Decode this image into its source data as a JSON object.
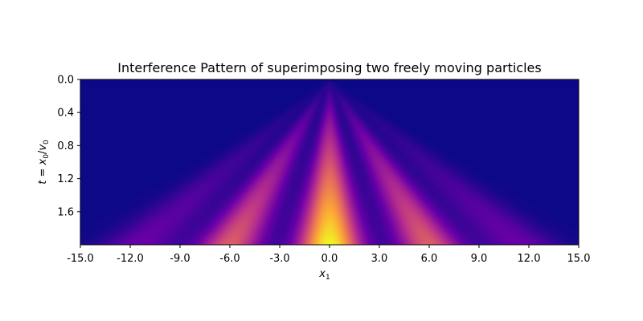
{
  "chart_data": {
    "type": "heatmap",
    "title": "Interference Pattern of superimposing two freely moving particles",
    "xlabel": "x",
    "xlabel_subscript": "1",
    "ylabel_parts": {
      "lhs": "t",
      "eq": " = ",
      "num": "x",
      "num_sub": "0",
      "slash": "/",
      "den": "v",
      "den_sub": "0"
    },
    "xlim": [
      -15.0,
      15.0
    ],
    "ylim": [
      0.0,
      2.0
    ],
    "y_inverted": true,
    "x_ticks": [
      -15.0,
      -12.0,
      -9.0,
      -6.0,
      -3.0,
      0.0,
      3.0,
      6.0,
      9.0,
      12.0,
      15.0
    ],
    "x_tick_labels": [
      "-15.0",
      "-12.0",
      "-9.0",
      "-6.0",
      "-3.0",
      "0.0",
      "3.0",
      "6.0",
      "9.0",
      "12.0",
      "15.0"
    ],
    "y_ticks": [
      0.0,
      0.4,
      0.8,
      1.2,
      1.6
    ],
    "y_tick_labels": [
      "0.0",
      "0.4",
      "0.8",
      "1.2",
      "1.6"
    ],
    "colormap": "plasma",
    "colormap_stops": [
      "#0d0887",
      "#6a00a8",
      "#b12a90",
      "#e16462",
      "#fca636",
      "#f0f921"
    ],
    "intensity_max_location": {
      "x": 0.0,
      "t": 2.0
    },
    "fringe_centers_at_t_max": [
      -6.0,
      0.0,
      6.0,
      -11.5,
      11.5
    ],
    "fringe_relative_brightness": [
      0.58,
      1.0,
      0.58,
      0.2,
      0.2
    ]
  }
}
